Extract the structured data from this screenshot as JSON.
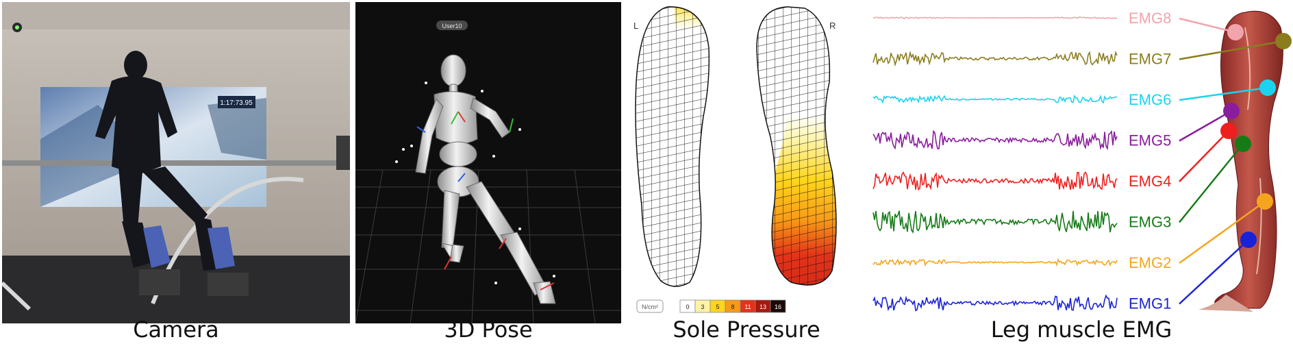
{
  "captions": {
    "camera": "Camera",
    "pose": "3D Pose",
    "sole": "Sole Pressure",
    "emg": "Leg muscle EMG"
  },
  "pose_panel": {
    "user_tag": "User10"
  },
  "camera_panel": {
    "screen_readout": "1:17:73.95"
  },
  "sole_panel": {
    "left_label": "L",
    "right_label": "R",
    "unit": "N/cm²",
    "scale": [
      {
        "label": "0",
        "color": "#ffffff"
      },
      {
        "label": "3",
        "color": "#fff3a6"
      },
      {
        "label": "5",
        "color": "#ffd51c"
      },
      {
        "label": "8",
        "color": "#f79a17"
      },
      {
        "label": "11",
        "color": "#e33319"
      },
      {
        "label": "13",
        "color": "#a5190f"
      },
      {
        "label": "16",
        "color": "#1c0906"
      }
    ]
  },
  "emg_panel": {
    "channels": [
      {
        "label": "EMG8",
        "color": "#f2a4ac"
      },
      {
        "label": "EMG7",
        "color": "#8b7d1e"
      },
      {
        "label": "EMG6",
        "color": "#1bd3ee"
      },
      {
        "label": "EMG5",
        "color": "#8a1d9c"
      },
      {
        "label": "EMG4",
        "color": "#ef1f1f"
      },
      {
        "label": "EMG3",
        "color": "#167a17"
      },
      {
        "label": "EMG2",
        "color": "#f5a51d"
      },
      {
        "label": "EMG1",
        "color": "#1a22d8"
      }
    ]
  }
}
